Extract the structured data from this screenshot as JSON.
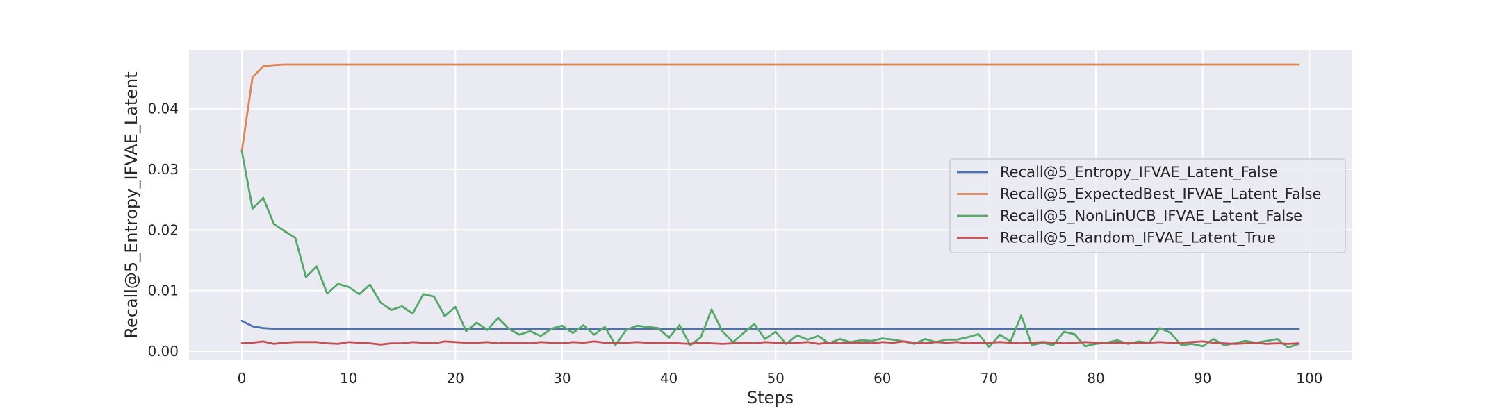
{
  "chart_data": {
    "type": "line",
    "title": "",
    "xlabel": "Steps",
    "ylabel": "Recall@5_Entropy_IFVAE_Latent",
    "xlim": [
      -4.95,
      103.95
    ],
    "ylim": [
      -0.0015,
      0.0497
    ],
    "x_ticks": [
      0,
      10,
      20,
      30,
      40,
      50,
      60,
      70,
      80,
      90,
      100
    ],
    "y_ticks": [
      0.0,
      0.01,
      0.02,
      0.03,
      0.04
    ],
    "y_tick_labels": [
      "0.00",
      "0.01",
      "0.02",
      "0.03",
      "0.04"
    ],
    "grid": true,
    "legend_position": "right",
    "x": [
      0,
      1,
      2,
      3,
      4,
      5,
      6,
      7,
      8,
      9,
      10,
      11,
      12,
      13,
      14,
      15,
      16,
      17,
      18,
      19,
      20,
      21,
      22,
      23,
      24,
      25,
      26,
      27,
      28,
      29,
      30,
      31,
      32,
      33,
      34,
      35,
      36,
      37,
      38,
      39,
      40,
      41,
      42,
      43,
      44,
      45,
      46,
      47,
      48,
      49,
      50,
      51,
      52,
      53,
      54,
      55,
      56,
      57,
      58,
      59,
      60,
      61,
      62,
      63,
      64,
      65,
      66,
      67,
      68,
      69,
      70,
      71,
      72,
      73,
      74,
      75,
      76,
      77,
      78,
      79,
      80,
      81,
      82,
      83,
      84,
      85,
      86,
      87,
      88,
      89,
      90,
      91,
      92,
      93,
      94,
      95,
      96,
      97,
      98,
      99
    ],
    "series": [
      {
        "name": "Recall@5_Entropy_IFVAE_Latent_False",
        "color": "#4c72b0",
        "values": [
          0.005,
          0.0041,
          0.0038,
          0.0037,
          0.0037,
          0.0037,
          0.0037,
          0.0037,
          0.0037,
          0.0037,
          0.0037,
          0.0037,
          0.0037,
          0.0037,
          0.0037,
          0.0037,
          0.0037,
          0.0037,
          0.0037,
          0.0037,
          0.0037,
          0.0037,
          0.0037,
          0.0037,
          0.0037,
          0.0037,
          0.0037,
          0.0037,
          0.0037,
          0.0037,
          0.0037,
          0.0037,
          0.0037,
          0.0037,
          0.0037,
          0.0037,
          0.0037,
          0.0037,
          0.0037,
          0.0037,
          0.0037,
          0.0037,
          0.0037,
          0.0037,
          0.0037,
          0.0037,
          0.0037,
          0.0037,
          0.0037,
          0.0037,
          0.0037,
          0.0037,
          0.0037,
          0.0037,
          0.0037,
          0.0037,
          0.0037,
          0.0037,
          0.0037,
          0.0037,
          0.0037,
          0.0037,
          0.0037,
          0.0037,
          0.0037,
          0.0037,
          0.0037,
          0.0037,
          0.0037,
          0.0037,
          0.0037,
          0.0037,
          0.0037,
          0.0037,
          0.0037,
          0.0037,
          0.0037,
          0.0037,
          0.0037,
          0.0037,
          0.0037,
          0.0037,
          0.0037,
          0.0037,
          0.0037,
          0.0037,
          0.0037,
          0.0037,
          0.0037,
          0.0037,
          0.0037,
          0.0037,
          0.0037,
          0.0037,
          0.0037,
          0.0037,
          0.0037,
          0.0037,
          0.0037,
          0.0037
        ]
      },
      {
        "name": "Recall@5_ExpectedBest_IFVAE_Latent_False",
        "color": "#dd8452",
        "values": [
          0.033,
          0.0452,
          0.047,
          0.0472,
          0.0473,
          0.0473,
          0.0473,
          0.0473,
          0.0473,
          0.0473,
          0.0473,
          0.0473,
          0.0473,
          0.0473,
          0.0473,
          0.0473,
          0.0473,
          0.0473,
          0.0473,
          0.0473,
          0.0473,
          0.0473,
          0.0473,
          0.0473,
          0.0473,
          0.0473,
          0.0473,
          0.0473,
          0.0473,
          0.0473,
          0.0473,
          0.0473,
          0.0473,
          0.0473,
          0.0473,
          0.0473,
          0.0473,
          0.0473,
          0.0473,
          0.0473,
          0.0473,
          0.0473,
          0.0473,
          0.0473,
          0.0473,
          0.0473,
          0.0473,
          0.0473,
          0.0473,
          0.0473,
          0.0473,
          0.0473,
          0.0473,
          0.0473,
          0.0473,
          0.0473,
          0.0473,
          0.0473,
          0.0473,
          0.0473,
          0.0473,
          0.0473,
          0.0473,
          0.0473,
          0.0473,
          0.0473,
          0.0473,
          0.0473,
          0.0473,
          0.0473,
          0.0473,
          0.0473,
          0.0473,
          0.0473,
          0.0473,
          0.0473,
          0.0473,
          0.0473,
          0.0473,
          0.0473,
          0.0473,
          0.0473,
          0.0473,
          0.0473,
          0.0473,
          0.0473,
          0.0473,
          0.0473,
          0.0473,
          0.0473,
          0.0473,
          0.0473,
          0.0473,
          0.0473,
          0.0473,
          0.0473,
          0.0473,
          0.0473,
          0.0473,
          0.0473
        ]
      },
      {
        "name": "Recall@5_NonLinUCB_IFVAE_Latent_False",
        "color": "#55a868",
        "values": [
          0.033,
          0.0235,
          0.0253,
          0.021,
          0.0198,
          0.0187,
          0.0122,
          0.014,
          0.0095,
          0.0111,
          0.0106,
          0.0094,
          0.011,
          0.008,
          0.0068,
          0.0074,
          0.0062,
          0.0094,
          0.009,
          0.0058,
          0.0073,
          0.0033,
          0.0047,
          0.0035,
          0.0055,
          0.0037,
          0.0027,
          0.0033,
          0.0025,
          0.0037,
          0.0042,
          0.003,
          0.0043,
          0.0027,
          0.004,
          0.001,
          0.0035,
          0.0042,
          0.004,
          0.0038,
          0.0022,
          0.0043,
          0.001,
          0.0023,
          0.0069,
          0.0033,
          0.0015,
          0.003,
          0.0045,
          0.002,
          0.0032,
          0.0012,
          0.0026,
          0.0019,
          0.0025,
          0.0013,
          0.002,
          0.0015,
          0.0018,
          0.0017,
          0.0021,
          0.0019,
          0.0016,
          0.0012,
          0.002,
          0.0015,
          0.0019,
          0.0019,
          0.0023,
          0.0028,
          0.0007,
          0.0027,
          0.0016,
          0.0059,
          0.001,
          0.0014,
          0.001,
          0.0032,
          0.0028,
          0.0008,
          0.0012,
          0.0014,
          0.0018,
          0.0012,
          0.0016,
          0.0014,
          0.0038,
          0.003,
          0.001,
          0.0012,
          0.0008,
          0.002,
          0.001,
          0.0013,
          0.0017,
          0.0014,
          0.0017,
          0.002,
          0.0006,
          0.0012
        ]
      },
      {
        "name": "Recall@5_Random_IFVAE_Latent_True",
        "color": "#c44e52",
        "values": [
          0.0013,
          0.0014,
          0.0016,
          0.0012,
          0.0014,
          0.0015,
          0.0015,
          0.0015,
          0.0013,
          0.0012,
          0.0015,
          0.0014,
          0.0013,
          0.0011,
          0.0013,
          0.0013,
          0.0015,
          0.0014,
          0.0013,
          0.0016,
          0.0015,
          0.0014,
          0.0014,
          0.0015,
          0.0013,
          0.0014,
          0.0014,
          0.0013,
          0.0015,
          0.0014,
          0.0013,
          0.0015,
          0.0014,
          0.0016,
          0.0014,
          0.0013,
          0.0014,
          0.0015,
          0.0014,
          0.0014,
          0.0014,
          0.0013,
          0.0012,
          0.0014,
          0.0013,
          0.0012,
          0.0013,
          0.0014,
          0.0013,
          0.0015,
          0.0014,
          0.0013,
          0.0014,
          0.0015,
          0.0012,
          0.0014,
          0.0013,
          0.0014,
          0.0014,
          0.0013,
          0.0015,
          0.0014,
          0.0016,
          0.0014,
          0.0013,
          0.0015,
          0.0014,
          0.0015,
          0.0013,
          0.0014,
          0.0014,
          0.0015,
          0.0014,
          0.0013,
          0.0014,
          0.0015,
          0.0014,
          0.0013,
          0.0014,
          0.0015,
          0.0014,
          0.0013,
          0.0014,
          0.0014,
          0.0013,
          0.0014,
          0.0015,
          0.0014,
          0.0014,
          0.0015,
          0.0016,
          0.0014,
          0.0013,
          0.0012,
          0.0013,
          0.0014,
          0.0012,
          0.0013,
          0.0012,
          0.0013
        ]
      }
    ]
  },
  "style": {
    "plot_background": "#eaeaf2",
    "grid_color": "#ffffff",
    "legend_background": "#eaeaf2",
    "legend_border": "#cccccc"
  }
}
